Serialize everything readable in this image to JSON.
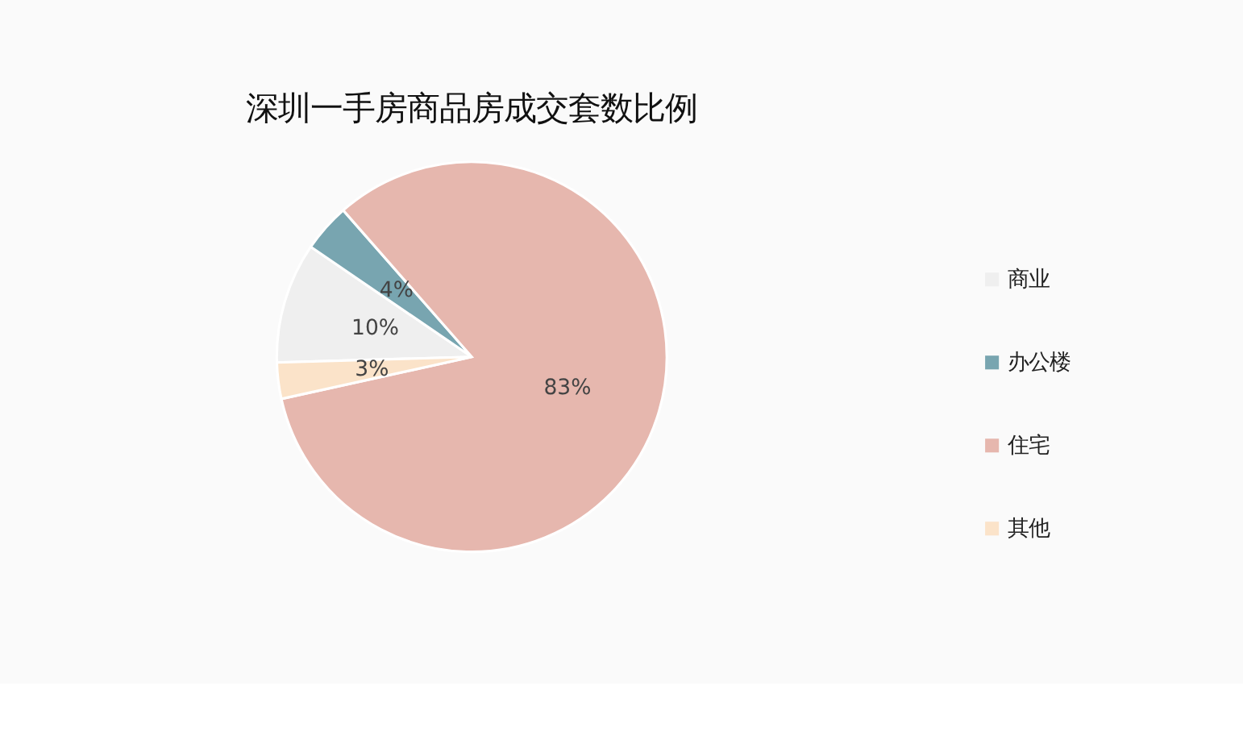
{
  "chart_data": {
    "type": "pie",
    "title": "深圳一手房商品房成交套数比例",
    "categories": [
      "商业",
      "办公楼",
      "住宅",
      "其他"
    ],
    "values": [
      10,
      4,
      83,
      3
    ],
    "value_labels": [
      "10%",
      "4%",
      "83%",
      "3%"
    ],
    "colors": [
      "#efefef",
      "#78a5b0",
      "#e6b7ae",
      "#fbe3c9"
    ],
    "legend": "right"
  }
}
